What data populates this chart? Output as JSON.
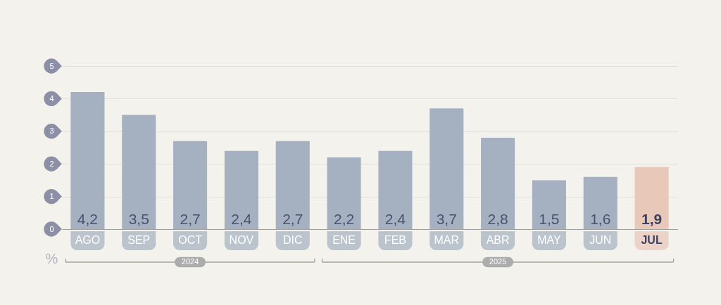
{
  "chart_data": {
    "type": "bar",
    "categories": [
      "AGO",
      "SEP",
      "OCT",
      "NOV",
      "DIC",
      "ENE",
      "FEB",
      "MAR",
      "ABR",
      "MAY",
      "JUN",
      "JUL"
    ],
    "values": [
      4.2,
      3.5,
      2.7,
      2.4,
      2.7,
      2.2,
      2.4,
      3.7,
      2.8,
      1.5,
      1.6,
      1.9
    ],
    "colors": [
      "#a5b0c1",
      "#a5b0c1",
      "#a5b0c1",
      "#a5b0c1",
      "#a5b0c1",
      "#a5b0c1",
      "#a5b0c1",
      "#a5b0c1",
      "#a5b0c1",
      "#a5b0c1",
      "#a5b0c1",
      "#e8c8b8"
    ],
    "value_labels": [
      "4,2",
      "3,5",
      "2,7",
      "2,4",
      "2,7",
      "2,2",
      "2,4",
      "3,7",
      "2,8",
      "1,5",
      "1,6",
      "1,9"
    ],
    "ylabel": "%",
    "ylim": [
      0,
      5
    ],
    "yticks": [
      0,
      1,
      2,
      3,
      4,
      5
    ],
    "grid": "y",
    "annotations": [
      "2024",
      "2025"
    ]
  }
}
